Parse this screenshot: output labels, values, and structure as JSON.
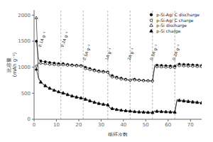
{
  "chart_data": {
    "type": "line",
    "xlabel": "循环次数",
    "ylabel": "比容量\n(mAh g⁻¹)",
    "x": [
      1,
      2,
      3,
      4,
      5,
      6,
      7,
      8,
      9,
      10,
      11,
      12,
      13,
      14,
      15,
      16,
      17,
      18,
      19,
      20,
      21,
      22,
      23,
      24,
      25,
      26,
      27,
      28,
      29,
      30,
      31,
      32,
      33,
      34,
      35,
      36,
      37,
      38,
      39,
      40,
      41,
      42,
      43,
      44,
      45,
      46,
      47,
      48,
      49,
      50,
      51,
      52,
      53,
      54,
      55,
      56,
      57,
      58,
      59,
      60,
      61,
      62,
      63,
      64,
      65,
      66,
      67,
      68,
      69,
      70,
      71,
      72,
      73,
      74,
      75
    ],
    "series": [
      {
        "name": "p-Si-Ag/ C discharge",
        "color": "black",
        "marker": "filled_circle",
        "values": [
          1500,
          1150,
          1120,
          1110,
          1105,
          1100,
          1090,
          1085,
          1080,
          1075,
          1070,
          1065,
          1070,
          1060,
          1055,
          1050,
          1045,
          1040,
          1038,
          1035,
          1032,
          1030,
          1000,
          990,
          975,
          960,
          950,
          940,
          930,
          925,
          920,
          915,
          910,
          850,
          840,
          825,
          810,
          800,
          790,
          780,
          770,
          760,
          750,
          780,
          770,
          760,
          755,
          750,
          748,
          745,
          743,
          740,
          738,
          1040,
          1040,
          1038,
          1035,
          1032,
          1030,
          1028,
          1025,
          1022,
          1020,
          1060,
          1060,
          1058,
          1055,
          1053,
          1050,
          1048,
          1045,
          1043,
          1040,
          1038,
          1035
        ]
      },
      {
        "name": "p-Si-Ag/ C charge",
        "color": "black",
        "marker": "open_circle",
        "values": [
          1020,
          1080,
          1075,
          1070,
          1065,
          1060,
          1055,
          1050,
          1048,
          1045,
          1042,
          1040,
          1045,
          1038,
          1035,
          1033,
          1030,
          1028,
          1025,
          1022,
          1020,
          1018,
          970,
          960,
          950,
          940,
          930,
          920,
          912,
          908,
          905,
          902,
          900,
          820,
          810,
          800,
          790,
          780,
          770,
          762,
          758,
          755,
          752,
          760,
          752,
          748,
          745,
          742,
          740,
          738,
          736,
          734,
          732,
          1010,
          1008,
          1006,
          1004,
          1002,
          1000,
          998,
          996,
          994,
          992,
          1030,
          1028,
          1026,
          1024,
          1022,
          1020,
          1018,
          1016,
          1014,
          1012,
          1010,
          1008
        ]
      },
      {
        "name": "p-Si discharge",
        "color": "black",
        "marker": "open_triangle",
        "values": [
          1950,
          800,
          720,
          680,
          650,
          620,
          600,
          580,
          560,
          545,
          530,
          515,
          510,
          495,
          480,
          465,
          452,
          440,
          430,
          420,
          412,
          405,
          390,
          375,
          360,
          345,
          330,
          318,
          308,
          300,
          292,
          285,
          280,
          220,
          210,
          200,
          190,
          183,
          177,
          172,
          167,
          163,
          160,
          155,
          150,
          147,
          145,
          143,
          141,
          139,
          137,
          135,
          133,
          160,
          158,
          155,
          152,
          150,
          148,
          146,
          144,
          142,
          140,
          380,
          370,
          365,
          360,
          355,
          350,
          345,
          340,
          335,
          330,
          325,
          320
        ]
      },
      {
        "name": "p-Si charge",
        "color": "black",
        "marker": "filled_triangle",
        "values": [
          960,
          780,
          710,
          670,
          640,
          612,
          592,
          572,
          555,
          540,
          525,
          510,
          500,
          485,
          470,
          456,
          444,
          432,
          422,
          413,
          405,
          397,
          380,
          365,
          350,
          336,
          322,
          310,
          300,
          292,
          285,
          278,
          272,
          213,
          203,
          194,
          185,
          178,
          172,
          167,
          162,
          158,
          154,
          148,
          144,
          141,
          138,
          136,
          134,
          132,
          130,
          128,
          126,
          152,
          150,
          147,
          144,
          142,
          140,
          138,
          136,
          134,
          132,
          368,
          358,
          353,
          348,
          343,
          338,
          333,
          328,
          324,
          320,
          316,
          312
        ]
      }
    ],
    "xlim": [
      0,
      75
    ],
    "ylim": [
      0,
      2100
    ],
    "xticks": [
      0,
      10,
      20,
      30,
      40,
      50,
      60,
      70
    ],
    "yticks": [
      0,
      500,
      1000,
      1500,
      2000
    ],
    "vlines": [
      12,
      22,
      33,
      43,
      53,
      63
    ],
    "annotations": [
      {
        "text": "0.1A g⁻¹",
        "x": 3,
        "y": 1380
      },
      {
        "text": "0.2A g⁻¹",
        "x": 13,
        "y": 1380
      },
      {
        "text": "0.5A g⁻¹",
        "x": 23,
        "y": 1130
      },
      {
        "text": "1A g⁻¹",
        "x": 33,
        "y": 1130
      },
      {
        "text": "2A g⁻¹",
        "x": 43,
        "y": 1130
      },
      {
        "text": "0.5A g⁻¹",
        "x": 53,
        "y": 1130
      },
      {
        "text": "0.2A g⁻¹",
        "x": 63,
        "y": 1130
      }
    ],
    "legend": "upper right",
    "grid": false
  }
}
